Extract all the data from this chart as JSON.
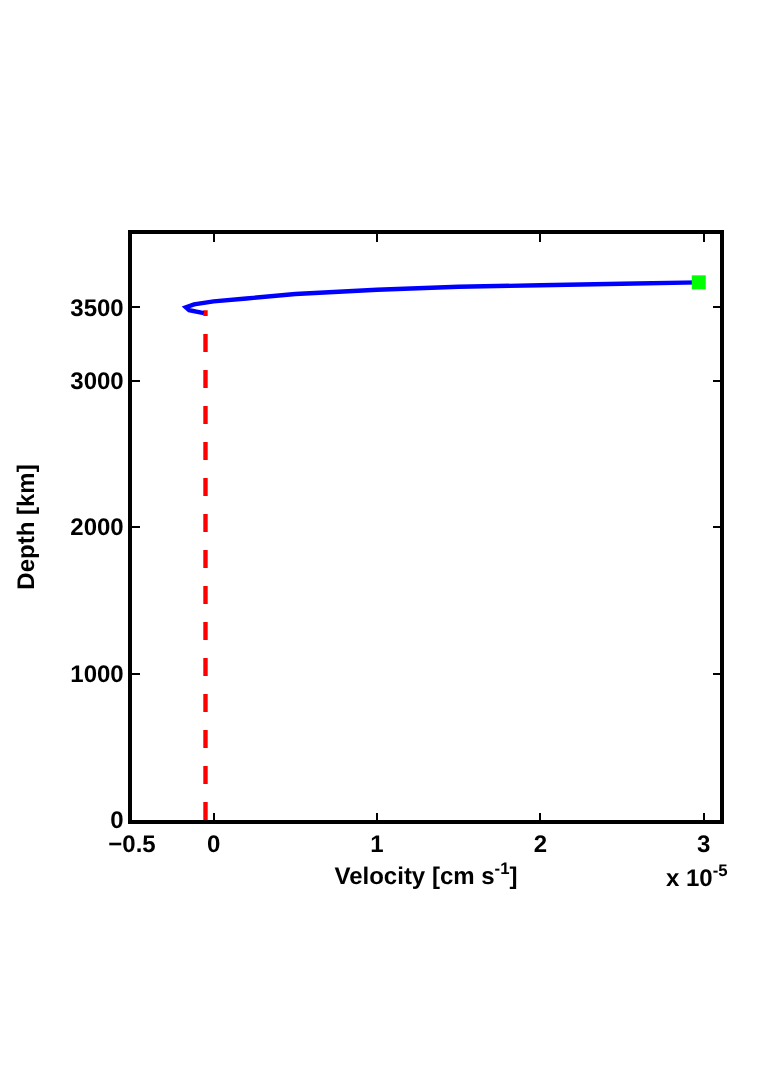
{
  "chart_data": {
    "type": "line",
    "xlabel": "Velocity [cm s$^{-1}$]",
    "ylabel": "Depth [km]",
    "xlim": [
      -0.5,
      3.1
    ],
    "ylim": [
      0,
      4000
    ],
    "xticks": [
      {
        "value": -0.5,
        "label": "−0.5"
      },
      0,
      1,
      2,
      3
    ],
    "yticks": [
      0,
      1000,
      2000,
      3000,
      3500
    ],
    "annotations": [
      "x 10$^{-5}$"
    ],
    "series": [
      {
        "type": "line",
        "color": "#ff0000",
        "line_style": "dashed",
        "marker": "none",
        "x": [
          -0.05,
          -0.05
        ],
        "values": [
          0,
          3480
        ]
      },
      {
        "color": "#0000ff",
        "line_style": "solid",
        "marker": "none",
        "x": [
          -0.06,
          -0.15,
          -0.17,
          -0.12,
          0,
          0.2,
          0.5,
          1,
          1.5,
          2,
          2.5,
          2.97
        ],
        "values": [
          3460,
          3480,
          3500,
          3520,
          3540,
          3560,
          3590,
          3620,
          3640,
          3650,
          3660,
          3670
        ]
      },
      {
        "type": "scatter",
        "color": "#00ff00",
        "marker": "square",
        "x": [
          2.97
        ],
        "values": [
          3670
        ]
      }
    ]
  }
}
